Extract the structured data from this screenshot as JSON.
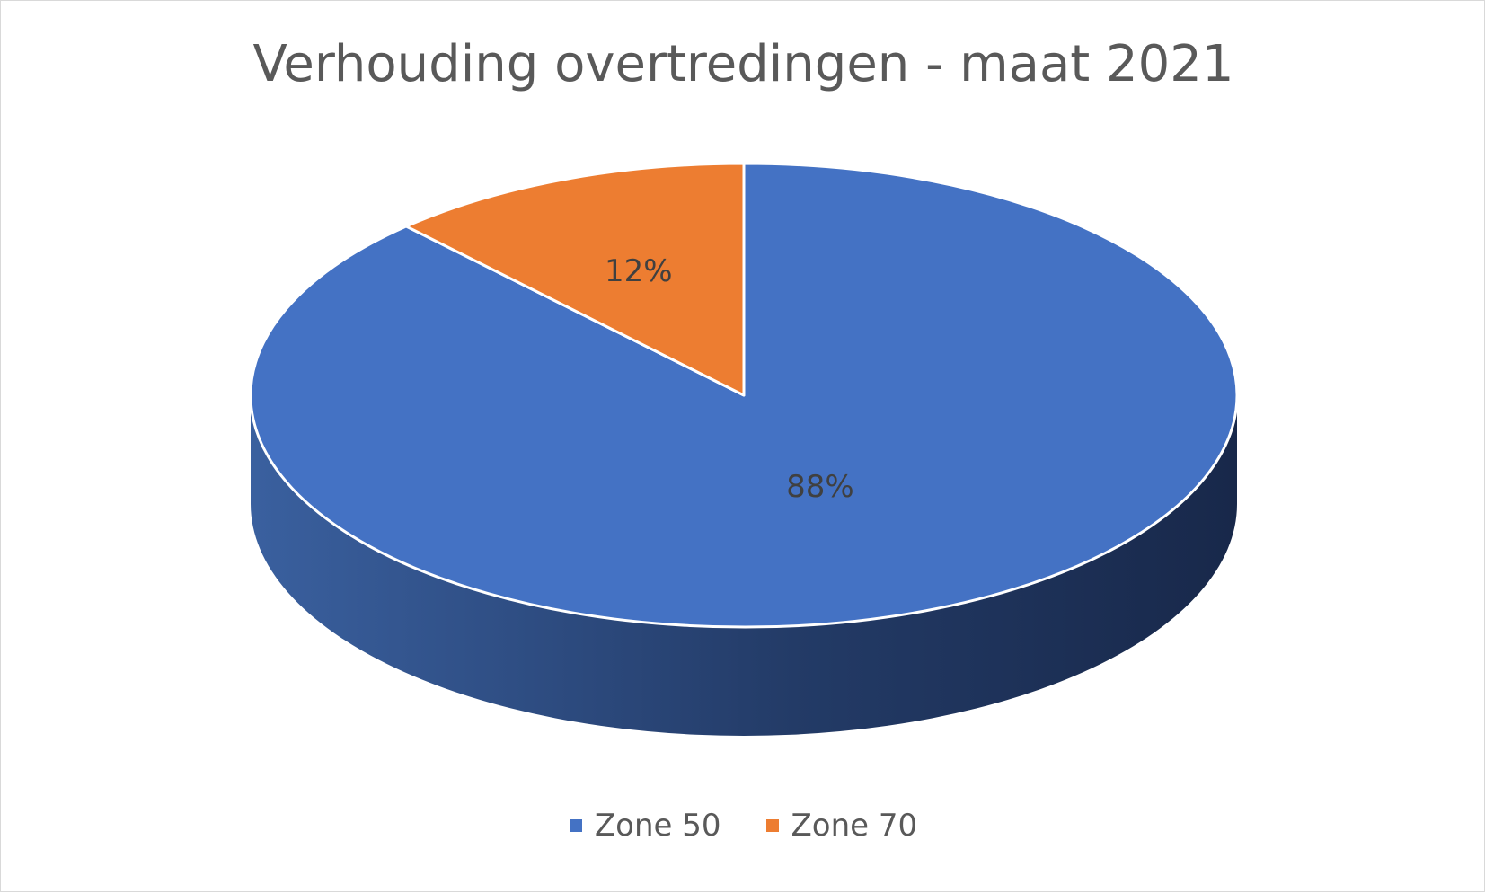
{
  "chart_data": {
    "type": "pie",
    "title": "Verhouding overtredingen - maat 2021",
    "categories": [
      "Zone 50",
      "Zone 70"
    ],
    "values": [
      88,
      12
    ],
    "data_labels": [
      "88%",
      "12%"
    ],
    "colors": [
      "#4472c4",
      "#ed7d31"
    ],
    "side_colors": [
      "#3a609f",
      "#1c2b4c"
    ],
    "three_d": true,
    "start_angle_deg": 0,
    "direction": "clockwise",
    "legend_position": "bottom"
  }
}
